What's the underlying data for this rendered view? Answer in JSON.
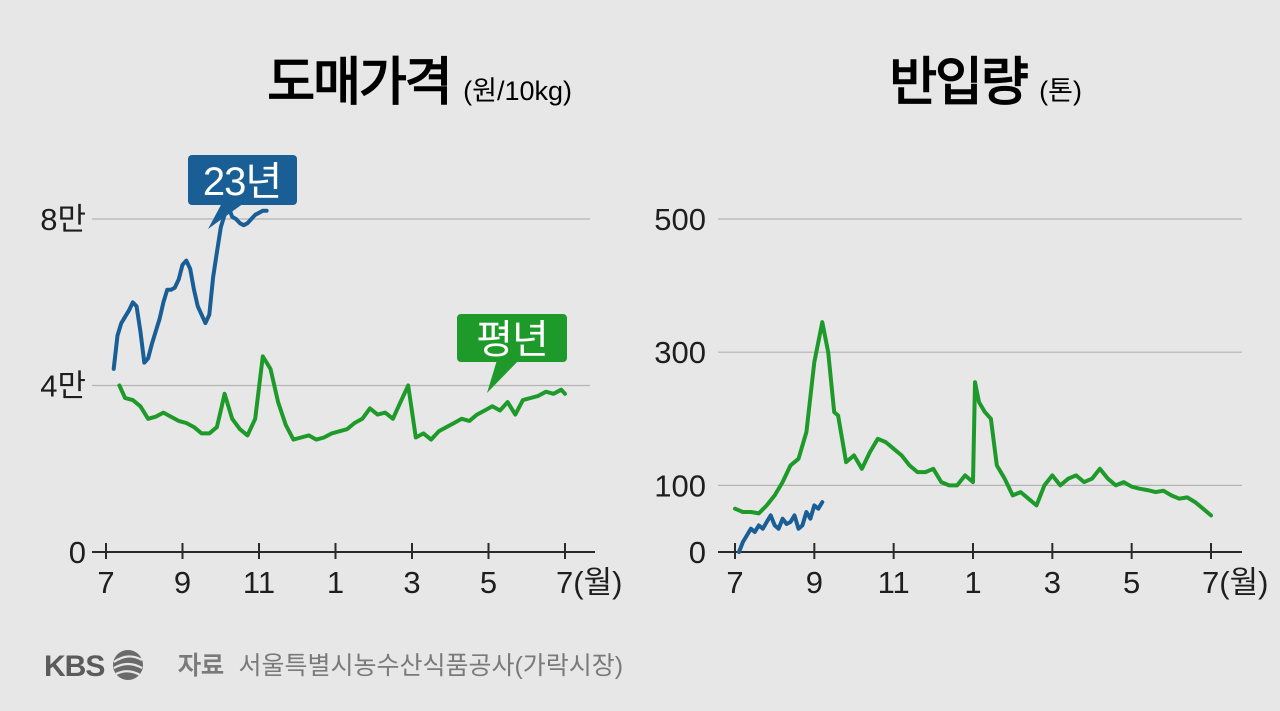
{
  "chart_data": [
    {
      "type": "line",
      "title": "도매가격",
      "unit": "(원/10kg)",
      "x_tick_labels": [
        "7",
        "9",
        "11",
        "1",
        "3",
        "5",
        "7(월)"
      ],
      "y_tick_labels": [
        "0",
        "4만",
        "8만"
      ],
      "y_ticks": [
        0,
        40000,
        80000
      ],
      "ylim": [
        0,
        80000
      ],
      "xlim": [
        0,
        12
      ],
      "grid": true,
      "callouts": {
        "23년": "23년",
        "평년": "평년"
      },
      "series": [
        {
          "name": "23년",
          "color": "#1a5e96",
          "x": [
            0.2,
            0.3,
            0.4,
            0.5,
            0.6,
            0.7,
            0.8,
            0.9,
            1.0,
            1.1,
            1.2,
            1.3,
            1.4,
            1.5,
            1.6,
            1.7,
            1.8,
            1.9,
            2.0,
            2.1,
            2.2,
            2.3,
            2.4,
            2.5,
            2.6,
            2.7,
            2.8,
            2.9,
            3.0,
            3.1,
            3.2,
            3.3,
            3.4,
            3.5,
            3.6,
            3.7,
            3.8,
            3.9,
            4.0,
            4.1,
            4.2
          ],
          "y": [
            44000,
            52000,
            55000,
            56500,
            58000,
            60000,
            59000,
            53000,
            45500,
            46500,
            50000,
            53000,
            56000,
            60000,
            63000,
            63000,
            63500,
            65500,
            69000,
            70000,
            68000,
            63000,
            59000,
            57000,
            55000,
            57000,
            66000,
            72000,
            78000,
            81000,
            83000,
            80500,
            80000,
            79000,
            78500,
            79000,
            80000,
            81000,
            81500,
            82000,
            82000
          ]
        },
        {
          "name": "평년",
          "color": "#1e9a2a",
          "x": [
            0.35,
            0.5,
            0.7,
            0.9,
            1.1,
            1.3,
            1.5,
            1.7,
            1.9,
            2.1,
            2.3,
            2.5,
            2.7,
            2.9,
            3.0,
            3.1,
            3.3,
            3.5,
            3.7,
            3.9,
            4.1,
            4.3,
            4.5,
            4.7,
            4.9,
            5.1,
            5.3,
            5.5,
            5.7,
            5.9,
            6.1,
            6.3,
            6.5,
            6.7,
            6.9,
            7.1,
            7.3,
            7.5,
            7.7,
            7.9,
            8.1,
            8.3,
            8.5,
            8.7,
            8.9,
            9.1,
            9.3,
            9.5,
            9.7,
            9.9,
            10.1,
            10.3,
            10.5,
            10.7,
            10.9,
            11.1,
            11.3,
            11.5,
            11.7,
            11.9,
            12.0
          ],
          "y": [
            40000,
            37000,
            36500,
            35000,
            32000,
            32500,
            33500,
            32500,
            31500,
            31000,
            30000,
            28500,
            28500,
            30000,
            34000,
            38000,
            32000,
            29500,
            28000,
            32000,
            47000,
            44000,
            36000,
            30500,
            27000,
            27500,
            28000,
            27000,
            27500,
            28500,
            29000,
            29500,
            31000,
            32000,
            34500,
            33000,
            33500,
            32000,
            36000,
            40000,
            27500,
            28500,
            27000,
            29000,
            30000,
            31000,
            32000,
            31500,
            33000,
            34000,
            35000,
            34000,
            36000,
            33000,
            36500,
            37000,
            37500,
            38500,
            38000,
            39000,
            38000
          ]
        }
      ]
    },
    {
      "type": "line",
      "title": "반입량",
      "unit": "(톤)",
      "x_tick_labels": [
        "7",
        "9",
        "11",
        "1",
        "3",
        "5",
        "7(월)"
      ],
      "y_tick_labels": [
        "0",
        "100",
        "300",
        "500"
      ],
      "y_ticks": [
        0,
        100,
        300,
        500
      ],
      "ylim": [
        0,
        500
      ],
      "xlim": [
        0,
        12
      ],
      "grid": true,
      "series": [
        {
          "name": "23년",
          "color": "#1a5e96",
          "x": [
            0.1,
            0.2,
            0.3,
            0.4,
            0.5,
            0.6,
            0.7,
            0.8,
            0.9,
            1.0,
            1.1,
            1.2,
            1.3,
            1.4,
            1.5,
            1.6,
            1.7,
            1.8,
            1.9,
            2.0,
            2.1,
            2.2
          ],
          "y": [
            0,
            15,
            25,
            35,
            30,
            40,
            35,
            45,
            55,
            40,
            35,
            50,
            42,
            45,
            55,
            35,
            40,
            60,
            50,
            70,
            65,
            75
          ]
        },
        {
          "name": "평년",
          "color": "#1e9a2a",
          "x": [
            0.0,
            0.2,
            0.4,
            0.6,
            0.8,
            1.0,
            1.2,
            1.4,
            1.6,
            1.8,
            2.0,
            2.2,
            2.35,
            2.5,
            2.6,
            2.8,
            3.0,
            3.2,
            3.4,
            3.6,
            3.8,
            4.0,
            4.2,
            4.4,
            4.6,
            4.8,
            5.0,
            5.2,
            5.4,
            5.6,
            5.8,
            6.0,
            6.05,
            6.15,
            6.3,
            6.45,
            6.6,
            6.8,
            7.0,
            7.2,
            7.4,
            7.6,
            7.8,
            8.0,
            8.2,
            8.4,
            8.6,
            8.8,
            9.0,
            9.2,
            9.4,
            9.6,
            9.8,
            10.0,
            10.2,
            10.4,
            10.6,
            10.8,
            11.0,
            11.2,
            11.4,
            11.6,
            11.8,
            12.0
          ],
          "y": [
            65,
            60,
            60,
            58,
            70,
            85,
            105,
            130,
            140,
            180,
            285,
            345,
            300,
            210,
            205,
            135,
            145,
            125,
            150,
            170,
            165,
            155,
            145,
            130,
            120,
            120,
            125,
            105,
            100,
            100,
            115,
            105,
            255,
            225,
            210,
            200,
            130,
            110,
            85,
            90,
            80,
            70,
            100,
            115,
            100,
            110,
            115,
            105,
            110,
            125,
            110,
            100,
            105,
            98,
            95,
            93,
            90,
            92,
            85,
            80,
            82,
            75,
            65,
            55
          ]
        }
      ]
    }
  ],
  "footer": {
    "logo": "KBS",
    "label": "자료",
    "source": "서울특별시농수산식품공사(가락시장)"
  }
}
